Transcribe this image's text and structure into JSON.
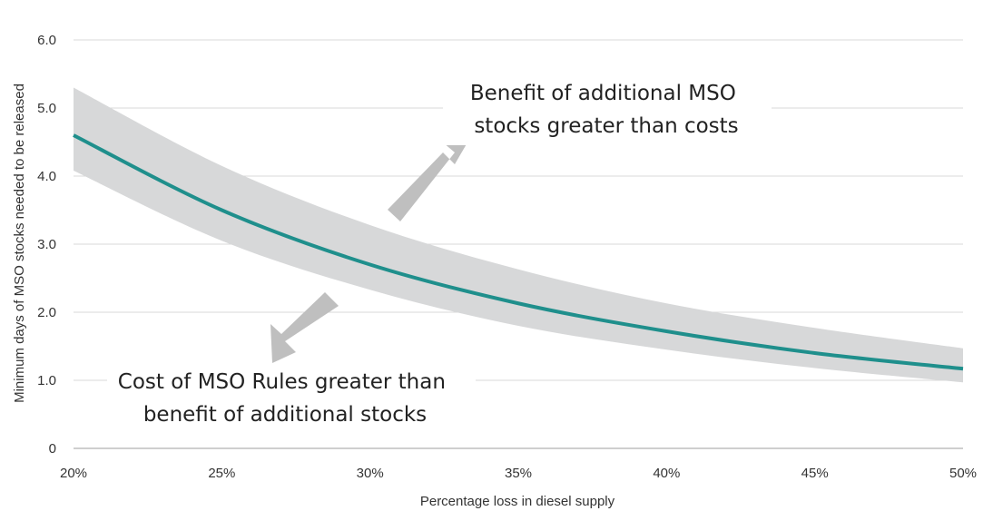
{
  "chart_data": {
    "type": "line",
    "title": "",
    "xlabel": "Percentage loss in diesel supply",
    "ylabel": "Minimum days of MSO stocks  needed to be released",
    "x": [
      20,
      25,
      30,
      35,
      40,
      45,
      50
    ],
    "x_tick_labels": [
      "20%",
      "25%",
      "30%",
      "35%",
      "40%",
      "45%",
      "50%"
    ],
    "y_tick_labels": [
      "0",
      "1.0",
      "2.0",
      "3.0",
      "4.0",
      "5.0",
      "6.0"
    ],
    "xlim": [
      20,
      50
    ],
    "ylim": [
      0,
      6
    ],
    "grid": true,
    "series": [
      {
        "values": [
          4.6,
          3.5,
          2.7,
          2.13,
          1.72,
          1.4,
          1.17
        ],
        "color": "#1f8f8c"
      }
    ],
    "band": {
      "upper": [
        5.3,
        4.15,
        3.28,
        2.63,
        2.13,
        1.77,
        1.47
      ],
      "lower": [
        4.08,
        3.05,
        2.33,
        1.8,
        1.45,
        1.18,
        0.97
      ],
      "color": "#d7d8d9"
    },
    "annotations": {
      "benefit": [
        "Benefit of additional MSO",
        "stocks greater than costs"
      ],
      "cost": [
        "Cost of MSO Rules greater than",
        "benefit of additional stocks"
      ]
    },
    "colors": {
      "grid": "#d9d9d9",
      "axis": "#bfbfbf",
      "arrow": "#bfbfbf",
      "zero_label": "#1a3cc8"
    }
  }
}
